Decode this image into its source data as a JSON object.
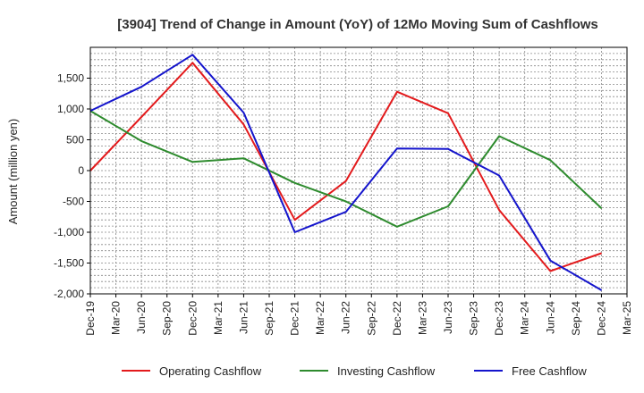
{
  "chart_data": {
    "type": "line",
    "title": "[3904]  Trend of Change in Amount (YoY) of 12Mo Moving Sum of Cashflows",
    "xlabel": "",
    "ylabel": "Amount (million yen)",
    "categories": [
      "Dec-19",
      "Mar-20",
      "Jun-20",
      "Sep-20",
      "Dec-20",
      "Mar-21",
      "Jun-21",
      "Sep-21",
      "Dec-21",
      "Mar-22",
      "Jun-22",
      "Sep-22",
      "Dec-22",
      "Mar-23",
      "Jun-23",
      "Sep-23",
      "Dec-23",
      "Mar-24",
      "Jun-24",
      "Sep-24",
      "Dec-24",
      "Mar-25"
    ],
    "ylim": [
      -2000,
      2000
    ],
    "yticks": [
      -2000,
      -1500,
      -1000,
      -500,
      0,
      500,
      1000,
      1500
    ],
    "ytick_labels": [
      "-2,000",
      "-1,500",
      "-1,000",
      "-500",
      "0",
      "500",
      "1,000",
      "1,500"
    ],
    "grid": true,
    "legend_position": "bottom",
    "series": [
      {
        "name": "Operating Cashflow",
        "color": "#e31a1c",
        "values": [
          0,
          null,
          870,
          null,
          1750,
          null,
          750,
          null,
          -800,
          null,
          -170,
          null,
          1280,
          null,
          930,
          null,
          -640,
          null,
          -1630,
          null,
          -1340,
          null
        ]
      },
      {
        "name": "Investing Cashflow",
        "color": "#2e8b2e",
        "values": [
          970,
          null,
          480,
          null,
          140,
          null,
          200,
          null,
          -200,
          null,
          -500,
          null,
          -910,
          null,
          -580,
          null,
          560,
          null,
          170,
          null,
          -610,
          null
        ]
      },
      {
        "name": "Free Cashflow",
        "color": "#1414cc",
        "values": [
          970,
          null,
          1360,
          null,
          1880,
          null,
          940,
          null,
          -1000,
          null,
          -670,
          null,
          360,
          null,
          350,
          null,
          -80,
          null,
          -1460,
          null,
          -1940,
          null
        ]
      }
    ]
  }
}
